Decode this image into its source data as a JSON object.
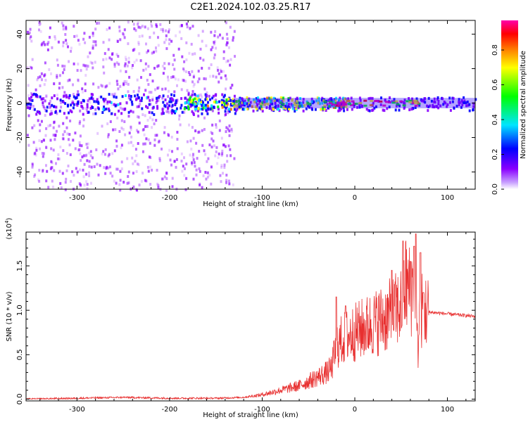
{
  "title": "C2E1.2024.102.03.25.R17",
  "chart_data": [
    {
      "type": "heatmap",
      "xlabel": "Height of straight line (km)",
      "ylabel": "Frequency (Hz)",
      "xlim": [
        -355,
        130
      ],
      "ylim": [
        -50,
        48
      ],
      "xticks": [
        "-300",
        "-200",
        "-100",
        "0",
        "100"
      ],
      "yticks": [
        "-40",
        "-20",
        "0",
        "20",
        "40"
      ],
      "colorbar": {
        "label": "Normalized spectral amplitude",
        "range": [
          0,
          0.97
        ],
        "ticks": [
          "0.0",
          "0.2",
          "0.4",
          "0.6",
          "0.8"
        ],
        "colormap": [
          "#ffffff",
          "#8a00ff",
          "#0000ff",
          "#00e5ff",
          "#00ff00",
          "#ffff00",
          "#ff8800",
          "#ff0000",
          "#ff00aa"
        ]
      },
      "bands": [
        {
          "x_range": [
            -355,
            -130
          ],
          "freq_range": [
            -50,
            48
          ],
          "amplitude": 0.05
        },
        {
          "x_range": [
            -355,
            -130
          ],
          "freq_range": [
            -6,
            6
          ],
          "amplitude": 0.2
        },
        {
          "x_range": [
            -130,
            130
          ],
          "freq_range": [
            -4,
            4
          ],
          "amplitude": 0.15
        },
        {
          "x_range": [
            -185,
            -10
          ],
          "freq_range": [
            -3,
            4
          ],
          "amplitude": 0.45
        },
        {
          "x_range": [
            -35,
            70
          ],
          "freq_range": [
            -1,
            2
          ],
          "amplitude": 0.9
        }
      ]
    },
    {
      "type": "line",
      "xlabel": "Height of straight line (km)",
      "ylabel": "SNR (10 * v/v)",
      "multiplier": "(x10^4)",
      "xlim": [
        -355,
        130
      ],
      "ylim": [
        -0.02,
        1.88
      ],
      "xticks": [
        "-300",
        "-200",
        "-100",
        "0",
        "100"
      ],
      "yticks": [
        "0.0",
        "0.5",
        "1.0",
        "1.5"
      ],
      "color": "#e83030",
      "series": [
        {
          "x": [
            -355,
            -300,
            -250,
            -200,
            -150,
            -120,
            -100,
            -80,
            -60,
            -40,
            -30,
            -25,
            -20,
            -10,
            0,
            10,
            20,
            30,
            40,
            50,
            55,
            60,
            65,
            68,
            70,
            75,
            80,
            90,
            100,
            110,
            120,
            130
          ],
          "y": [
            0.0,
            0.01,
            0.02,
            0.01,
            0.01,
            0.02,
            0.05,
            0.1,
            0.15,
            0.25,
            0.3,
            0.35,
            0.6,
            0.7,
            0.75,
            0.8,
            0.85,
            0.9,
            0.95,
            1.05,
            1.3,
            1.2,
            1.4,
            0.5,
            1.0,
            1.0,
            0.98,
            0.97,
            0.96,
            0.95,
            0.94,
            0.93
          ],
          "peaks": [
            [
              -20,
              1.15
            ],
            [
              -10,
              1.05
            ],
            [
              40,
              1.45
            ],
            [
              52,
              1.78
            ],
            [
              60,
              1.55
            ],
            [
              64,
              1.72
            ],
            [
              66,
              1.9
            ],
            [
              71,
              1.65
            ],
            [
              74,
              1.2
            ]
          ]
        }
      ]
    }
  ]
}
